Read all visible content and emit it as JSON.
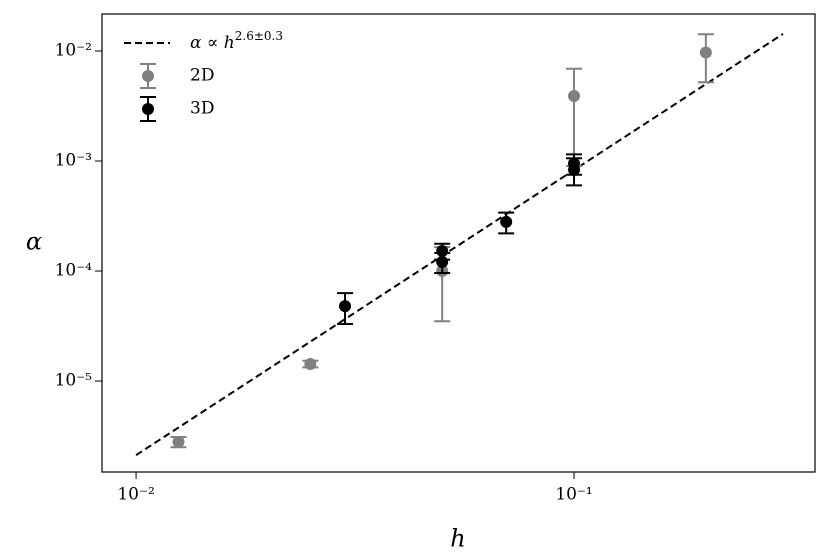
{
  "chart_data": {
    "type": "scatter",
    "x_label": "h",
    "y_label": "α",
    "xscale": "log",
    "yscale": "log",
    "xlim": [
      0.00836,
      0.355
    ],
    "ylim": [
      1.49e-06,
      0.0217
    ],
    "xticks": [
      {
        "value": 0.01,
        "label": "10⁻²"
      },
      {
        "value": 0.1,
        "label": "10⁻¹"
      }
    ],
    "yticks": [
      {
        "value": 1e-05,
        "label": "10⁻⁵"
      },
      {
        "value": 0.0001,
        "label": "10⁻⁴"
      },
      {
        "value": 0.001,
        "label": "10⁻³"
      },
      {
        "value": 0.01,
        "label": "10⁻²"
      }
    ],
    "legend": "upper left",
    "fit": {
      "name": "α ∝ h",
      "name_exponent": "2.6±0.3",
      "color": "#000000",
      "style": "dashed",
      "x": [
        0.01,
        0.3
      ],
      "values": [
        2.12e-06,
        0.0143
      ]
    },
    "series": [
      {
        "name": "2D",
        "color": "#808080",
        "x": [
          0.0125,
          0.025,
          0.05,
          0.1,
          0.2
        ],
        "values": [
          2.8e-06,
          1.43e-05,
          0.0001,
          0.0039,
          0.0097
        ],
        "errors": [
          3e-07,
          1e-06,
          6.5e-05,
          0.003,
          0.0045
        ]
      },
      {
        "name": "3D",
        "color": "#000000",
        "x": [
          0.03,
          0.05,
          0.05,
          0.07,
          0.1,
          0.1
        ],
        "values": [
          4.8e-05,
          0.000152,
          0.000121,
          0.00028,
          0.00095,
          0.00083
        ],
        "errors": [
          1.5e-05,
          2.5e-05,
          2.5e-05,
          6e-05,
          0.0002,
          0.00023
        ]
      }
    ]
  }
}
